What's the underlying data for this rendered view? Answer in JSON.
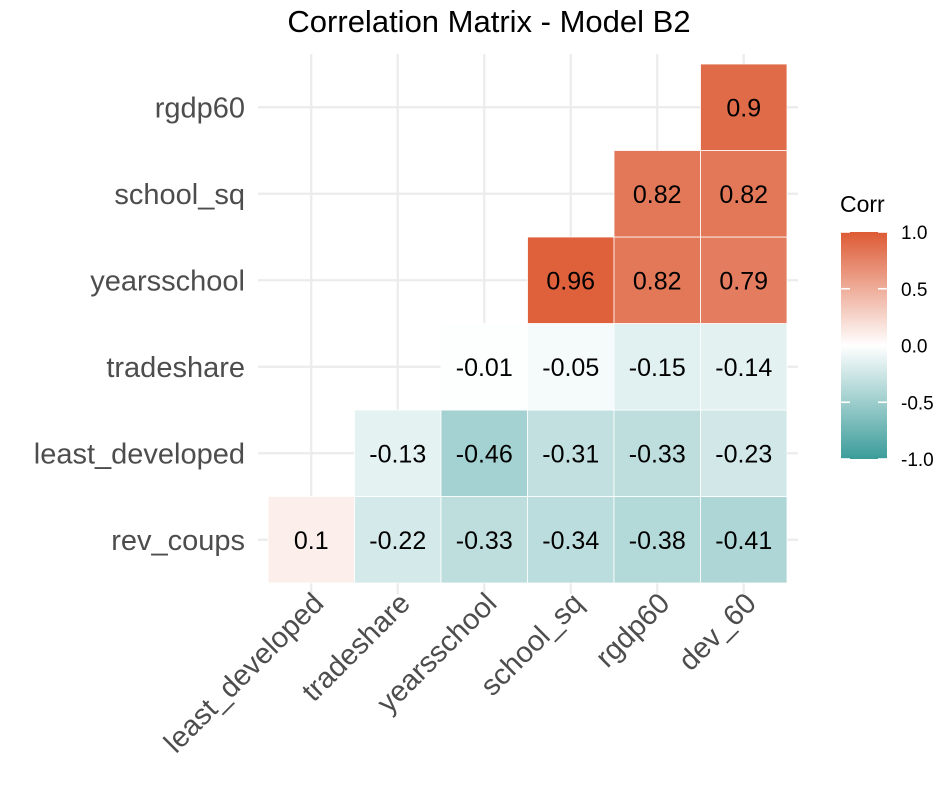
{
  "chart_data": {
    "type": "heatmap",
    "title": "Correlation Matrix - Model B2",
    "x_categories": [
      "least_developed",
      "tradeshare",
      "yearsschool",
      "school_sq",
      "rgdp60",
      "dev_60"
    ],
    "y_categories": [
      "rev_coups",
      "least_developed",
      "tradeshare",
      "yearsschool",
      "school_sq",
      "rgdp60"
    ],
    "cells": [
      {
        "x": "least_developed",
        "y": "rev_coups",
        "value": 0.1,
        "label": "0.1"
      },
      {
        "x": "tradeshare",
        "y": "rev_coups",
        "value": -0.22,
        "label": "-0.22"
      },
      {
        "x": "yearsschool",
        "y": "rev_coups",
        "value": -0.33,
        "label": "-0.33"
      },
      {
        "x": "school_sq",
        "y": "rev_coups",
        "value": -0.34,
        "label": "-0.34"
      },
      {
        "x": "rgdp60",
        "y": "rev_coups",
        "value": -0.38,
        "label": "-0.38"
      },
      {
        "x": "dev_60",
        "y": "rev_coups",
        "value": -0.41,
        "label": "-0.41"
      },
      {
        "x": "tradeshare",
        "y": "least_developed",
        "value": -0.13,
        "label": "-0.13"
      },
      {
        "x": "yearsschool",
        "y": "least_developed",
        "value": -0.46,
        "label": "-0.46"
      },
      {
        "x": "school_sq",
        "y": "least_developed",
        "value": -0.31,
        "label": "-0.31"
      },
      {
        "x": "rgdp60",
        "y": "least_developed",
        "value": -0.33,
        "label": "-0.33"
      },
      {
        "x": "dev_60",
        "y": "least_developed",
        "value": -0.23,
        "label": "-0.23"
      },
      {
        "x": "yearsschool",
        "y": "tradeshare",
        "value": -0.01,
        "label": "-0.01"
      },
      {
        "x": "school_sq",
        "y": "tradeshare",
        "value": -0.05,
        "label": "-0.05"
      },
      {
        "x": "rgdp60",
        "y": "tradeshare",
        "value": -0.15,
        "label": "-0.15"
      },
      {
        "x": "dev_60",
        "y": "tradeshare",
        "value": -0.14,
        "label": "-0.14"
      },
      {
        "x": "school_sq",
        "y": "yearsschool",
        "value": 0.96,
        "label": "0.96"
      },
      {
        "x": "rgdp60",
        "y": "yearsschool",
        "value": 0.82,
        "label": "0.82"
      },
      {
        "x": "dev_60",
        "y": "yearsschool",
        "value": 0.79,
        "label": "0.79"
      },
      {
        "x": "rgdp60",
        "y": "school_sq",
        "value": 0.82,
        "label": "0.82"
      },
      {
        "x": "dev_60",
        "y": "school_sq",
        "value": 0.82,
        "label": "0.82"
      },
      {
        "x": "dev_60",
        "y": "rgdp60",
        "value": 0.9,
        "label": "0.9"
      }
    ],
    "legend": {
      "title": "Corr",
      "ticks": [
        {
          "value": 1.0,
          "label": "1.0"
        },
        {
          "value": 0.5,
          "label": "0.5"
        },
        {
          "value": 0.0,
          "label": "0.0"
        },
        {
          "value": -0.5,
          "label": "-0.5"
        },
        {
          "value": -1.0,
          "label": "-1.0"
        }
      ],
      "range": [
        -1,
        1
      ],
      "placement": "right"
    },
    "colors": {
      "low": "#3a9c9a",
      "mid": "#ffffff",
      "high": "#dd5a34"
    },
    "grid": true
  }
}
